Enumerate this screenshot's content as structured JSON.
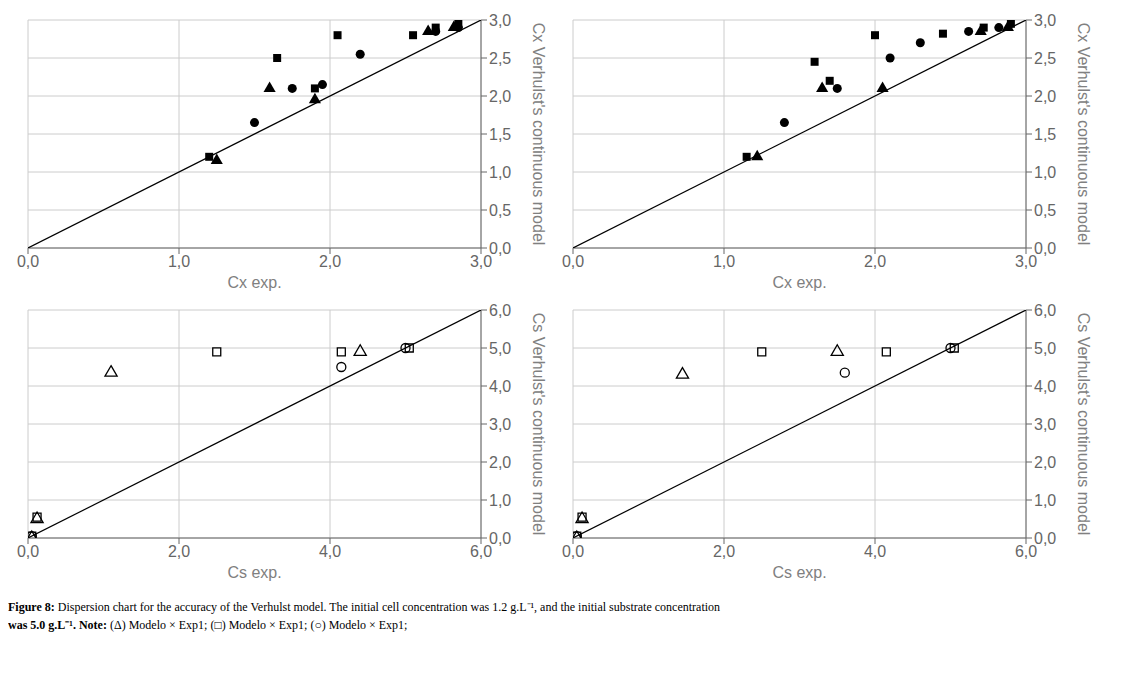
{
  "chart_data": [
    {
      "type": "scatter",
      "xlabel": "Cx  exp.",
      "ylabel": "Cx Verhulst's continuous model",
      "grid": true,
      "xlim": [
        0.0,
        3.0
      ],
      "ylim": [
        0.0,
        3.0
      ],
      "xticks": [
        {
          "value": 0.0,
          "label": "0,0"
        },
        {
          "value": 1.0,
          "label": "1,0"
        },
        {
          "value": 2.0,
          "label": "2,0"
        },
        {
          "value": 3.0,
          "label": "3,0"
        }
      ],
      "yticks": [
        {
          "value": 0.0,
          "label": "0,0"
        },
        {
          "value": 0.5,
          "label": "0,5"
        },
        {
          "value": 1.0,
          "label": "1,0"
        },
        {
          "value": 1.5,
          "label": "1,5"
        },
        {
          "value": 2.0,
          "label": "2,0"
        },
        {
          "value": 2.5,
          "label": "2,5"
        },
        {
          "value": 3.0,
          "label": "3,0"
        }
      ],
      "series": [
        {
          "type": "line",
          "color": "#000000",
          "x": [
            0,
            3.0
          ],
          "values": [
            0,
            3.0
          ]
        },
        {
          "type": "scatter",
          "marker": "square",
          "color": "#000000",
          "x": [
            1.2,
            1.65,
            1.9,
            2.05,
            2.55,
            2.7,
            2.85
          ],
          "values": [
            1.2,
            2.5,
            2.1,
            2.8,
            2.8,
            2.9,
            2.95
          ]
        },
        {
          "type": "scatter",
          "marker": "circle",
          "color": "#000000",
          "x": [
            1.5,
            1.75,
            1.95,
            2.2,
            2.7,
            2.85
          ],
          "values": [
            1.65,
            2.1,
            2.15,
            2.55,
            2.85,
            2.9
          ]
        },
        {
          "type": "scatter",
          "marker": "triangle",
          "color": "#000000",
          "x": [
            1.25,
            1.6,
            1.9,
            2.65,
            2.82
          ],
          "values": [
            1.15,
            2.1,
            1.95,
            2.85,
            2.9
          ]
        }
      ]
    },
    {
      "type": "scatter",
      "xlabel": "Cx  exp.",
      "ylabel": "Cx Verhulst's continuous model",
      "grid": true,
      "xlim": [
        0.0,
        3.0
      ],
      "ylim": [
        0.0,
        3.0
      ],
      "xticks": [
        {
          "value": 0.0,
          "label": "0,0"
        },
        {
          "value": 1.0,
          "label": "1,0"
        },
        {
          "value": 2.0,
          "label": "2,0"
        },
        {
          "value": 3.0,
          "label": "3,0"
        }
      ],
      "yticks": [
        {
          "value": 0.0,
          "label": "0,0"
        },
        {
          "value": 0.5,
          "label": "0,5"
        },
        {
          "value": 1.0,
          "label": "1,0"
        },
        {
          "value": 1.5,
          "label": "1,5"
        },
        {
          "value": 2.0,
          "label": "2,0"
        },
        {
          "value": 2.5,
          "label": "2,5"
        },
        {
          "value": 3.0,
          "label": "3,0"
        }
      ],
      "series": [
        {
          "type": "line",
          "color": "#000000",
          "x": [
            0,
            3.0
          ],
          "values": [
            0,
            3.0
          ]
        },
        {
          "type": "scatter",
          "marker": "square",
          "color": "#000000",
          "x": [
            1.15,
            1.6,
            1.7,
            2.0,
            2.45,
            2.72,
            2.9
          ],
          "values": [
            1.2,
            2.45,
            2.2,
            2.8,
            2.82,
            2.9,
            2.95
          ]
        },
        {
          "type": "scatter",
          "marker": "circle",
          "color": "#000000",
          "x": [
            1.4,
            1.75,
            2.1,
            2.3,
            2.62,
            2.82
          ],
          "values": [
            1.65,
            2.1,
            2.5,
            2.7,
            2.85,
            2.9
          ]
        },
        {
          "type": "scatter",
          "marker": "triangle",
          "color": "#000000",
          "x": [
            1.22,
            1.65,
            2.05,
            2.7,
            2.88
          ],
          "values": [
            1.2,
            2.1,
            2.1,
            2.85,
            2.9
          ]
        }
      ]
    },
    {
      "type": "scatter",
      "xlabel": "Cs exp.",
      "ylabel": "Cs Verhulst's continuous model",
      "grid": true,
      "xlim": [
        0.0,
        6.0
      ],
      "ylim": [
        0.0,
        6.0
      ],
      "xticks": [
        {
          "value": 0.0,
          "label": "0,0"
        },
        {
          "value": 2.0,
          "label": "2,0"
        },
        {
          "value": 4.0,
          "label": "4,0"
        },
        {
          "value": 6.0,
          "label": "6,0"
        }
      ],
      "yticks": [
        {
          "value": 0.0,
          "label": "0,0"
        },
        {
          "value": 1.0,
          "label": "1,0"
        },
        {
          "value": 2.0,
          "label": "2,0"
        },
        {
          "value": 3.0,
          "label": "3,0"
        },
        {
          "value": 4.0,
          "label": "4,0"
        },
        {
          "value": 5.0,
          "label": "5,0"
        },
        {
          "value": 6.0,
          "label": "6,0"
        }
      ],
      "series": [
        {
          "type": "line",
          "color": "#000000",
          "x": [
            0,
            6.0
          ],
          "values": [
            0,
            6.0
          ]
        },
        {
          "type": "scatter",
          "marker": "open-square",
          "color": "#000000",
          "x": [
            0.05,
            0.12,
            2.5,
            4.15,
            5.05
          ],
          "values": [
            0.05,
            0.55,
            4.9,
            4.9,
            5.0
          ]
        },
        {
          "type": "scatter",
          "marker": "open-circle",
          "color": "#000000",
          "x": [
            0.05,
            4.15,
            5.0
          ],
          "values": [
            0.05,
            4.5,
            5.0
          ]
        },
        {
          "type": "scatter",
          "marker": "open-triangle",
          "color": "#000000",
          "x": [
            0.05,
            0.12,
            1.1,
            4.4
          ],
          "values": [
            0.0,
            0.5,
            4.35,
            4.9
          ]
        }
      ]
    },
    {
      "type": "scatter",
      "xlabel": "Cs exp.",
      "ylabel": "Cs Verhulst's continuous model",
      "grid": true,
      "xlim": [
        0.0,
        6.0
      ],
      "ylim": [
        0.0,
        6.0
      ],
      "xticks": [
        {
          "value": 0.0,
          "label": "0,0"
        },
        {
          "value": 2.0,
          "label": "2,0"
        },
        {
          "value": 4.0,
          "label": "4,0"
        },
        {
          "value": 6.0,
          "label": "6,0"
        }
      ],
      "yticks": [
        {
          "value": 0.0,
          "label": "0,0"
        },
        {
          "value": 1.0,
          "label": "1,0"
        },
        {
          "value": 2.0,
          "label": "2,0"
        },
        {
          "value": 3.0,
          "label": "3,0"
        },
        {
          "value": 4.0,
          "label": "4,0"
        },
        {
          "value": 5.0,
          "label": "5,0"
        },
        {
          "value": 6.0,
          "label": "6,0"
        }
      ],
      "series": [
        {
          "type": "line",
          "color": "#000000",
          "x": [
            0,
            6.0
          ],
          "values": [
            0,
            6.0
          ]
        },
        {
          "type": "scatter",
          "marker": "open-square",
          "color": "#000000",
          "x": [
            0.05,
            0.12,
            2.5,
            4.15,
            5.05
          ],
          "values": [
            0.05,
            0.55,
            4.9,
            4.9,
            5.0
          ]
        },
        {
          "type": "scatter",
          "marker": "open-circle",
          "color": "#000000",
          "x": [
            0.05,
            3.6,
            5.0
          ],
          "values": [
            0.05,
            4.35,
            5.0
          ]
        },
        {
          "type": "scatter",
          "marker": "open-triangle",
          "color": "#000000",
          "x": [
            0.05,
            0.12,
            1.45,
            3.5
          ],
          "values": [
            0.0,
            0.5,
            4.3,
            4.9
          ]
        }
      ]
    }
  ],
  "annotations": [
    [
      {
        "text": "Figure 8:",
        "bold": true
      },
      {
        "text": " Dispersion chart for the accuracy of the Verhulst model. The initial cell concentration was 1.2 g.L⁻¹, and the initial substrate concentration",
        "bold": false
      }
    ],
    [
      {
        "text": "was 5.0 g.L⁻¹.",
        "bold": true
      },
      {
        "text": " Note:",
        "bold": true
      },
      {
        "text": " (Δ) Modelo × Exp1; (□) Modelo × Exp1; (○) Modelo × Exp1;",
        "bold": false
      }
    ]
  ]
}
